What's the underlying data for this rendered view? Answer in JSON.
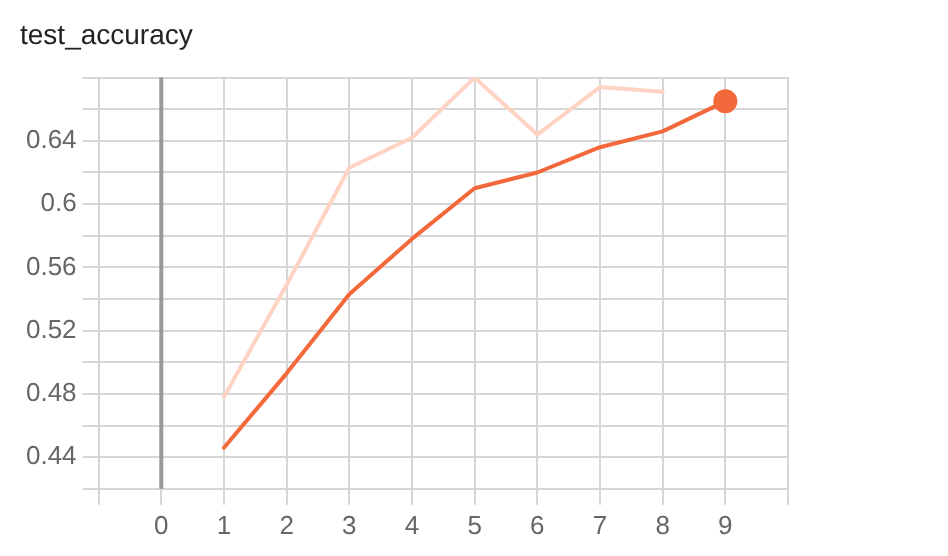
{
  "chart_data": {
    "type": "line",
    "title": "test_accuracy",
    "x": [
      1,
      2,
      3,
      4,
      5,
      6,
      7,
      8,
      9
    ],
    "series": [
      {
        "color": "#ffd3c4",
        "values": [
          0.478,
          0.549,
          0.623,
          0.642,
          0.68,
          0.644,
          0.674,
          0.671,
          null
        ]
      },
      {
        "color": "#f4693b",
        "values": [
          0.446,
          0.493,
          0.543,
          0.578,
          0.61,
          0.62,
          0.636,
          0.646,
          0.665
        ]
      },
      {
        "type": "scatter",
        "marker": "circle",
        "color": "#f4693b",
        "x": [
          9
        ],
        "values": [
          0.665
        ]
      }
    ],
    "xlim": [
      -1,
      10
    ],
    "xticks": [
      {
        "value": -1,
        "label": null
      },
      0,
      1,
      2,
      3,
      4,
      5,
      6,
      7,
      8,
      9,
      {
        "value": 10,
        "label": null
      }
    ],
    "ylim": [
      0.42,
      0.68
    ],
    "yticks": [
      {
        "value": 0.42,
        "label": null
      },
      0.44,
      {
        "value": 0.46,
        "label": null
      },
      0.48,
      {
        "value": 0.5,
        "label": null
      },
      0.52,
      {
        "value": 0.54,
        "label": null
      },
      0.56,
      {
        "value": 0.58,
        "label": null
      },
      0.6,
      {
        "value": 0.62,
        "label": null
      },
      0.64,
      {
        "value": 0.66,
        "label": null
      },
      {
        "value": 0.68,
        "label": null
      }
    ],
    "ref_lines": [
      {
        "axis": "x",
        "value": 0,
        "color": "#999999"
      }
    ],
    "grid": true,
    "legend": false,
    "marker": "none",
    "line_style": "solid"
  }
}
